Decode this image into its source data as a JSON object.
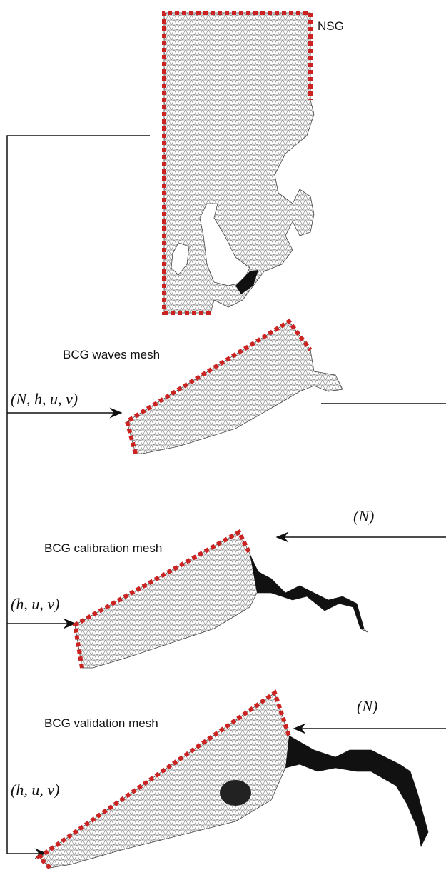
{
  "meshes": [
    "NSG",
    "BCG waves mesh",
    "BCG calibration mesh",
    "BCG validation mesh"
  ],
  "inputs": {
    "waves_left": "(N, h, u, v)",
    "calibration_left": "(h, u, v)",
    "calibration_right": "(N)",
    "validation_right": "(N)",
    "validation_left": "(h, u, v)"
  }
}
